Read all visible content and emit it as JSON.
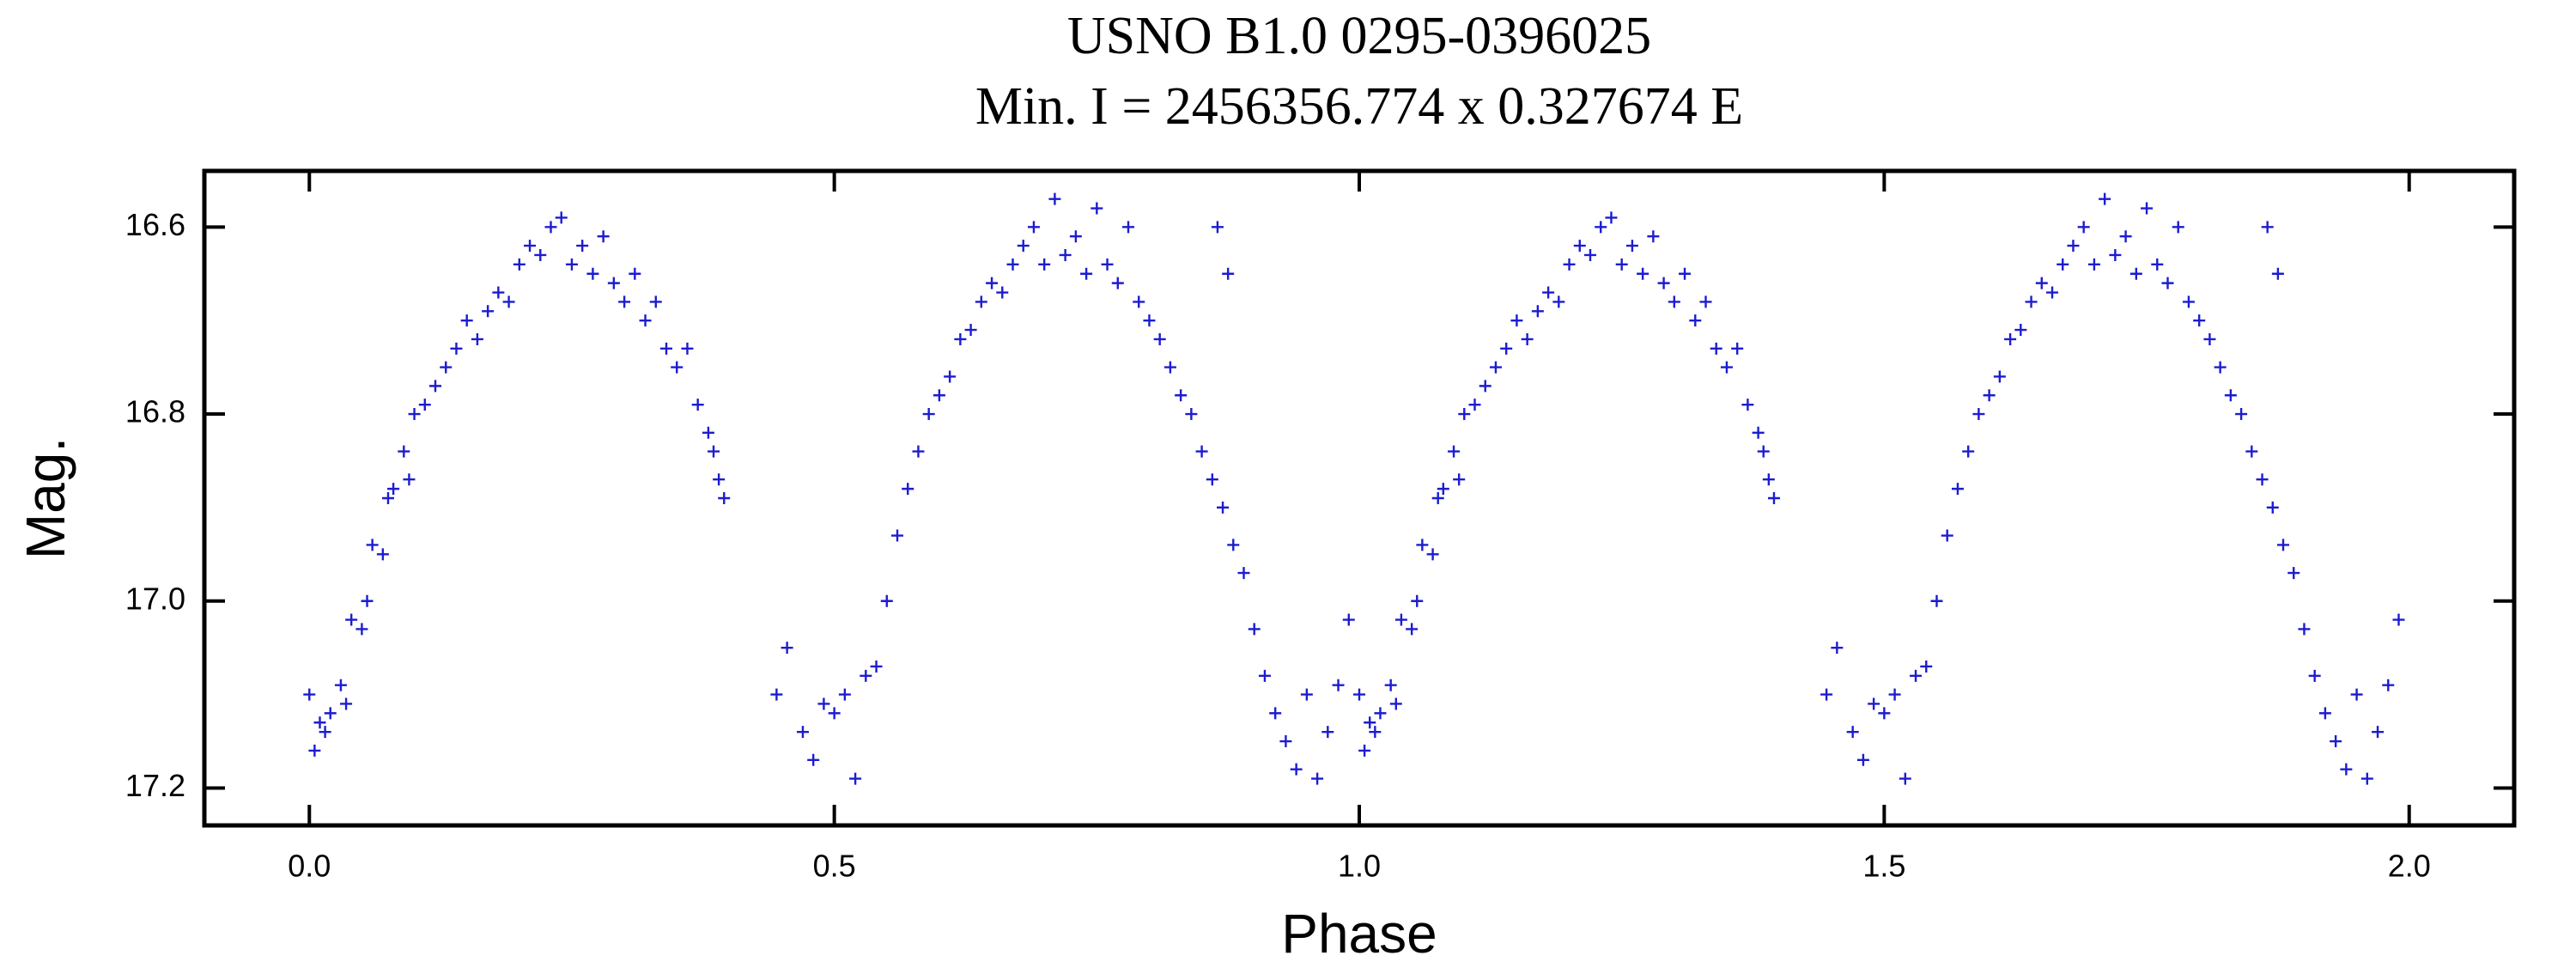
{
  "chart_data": {
    "type": "scatter",
    "title": "USNO B1.0 0295-0396025",
    "subtitle": "Min. I = 2456356.774 x 0.327674 E",
    "xlabel": "Phase",
    "ylabel": "Mag.",
    "xlim": [
      -0.1,
      2.1
    ],
    "ylim": [
      16.54,
      17.24
    ],
    "y_inverted": true,
    "xticks": [
      {
        "value": 0,
        "label": "0.0"
      },
      0.5,
      {
        "value": 1,
        "label": "1.0"
      },
      1.5,
      {
        "value": 2,
        "label": "2.0"
      }
    ],
    "yticks": [
      16.6,
      16.8,
      {
        "value": 17,
        "label": "17.0"
      },
      17.2
    ],
    "color": "#1c1cd0",
    "x": [
      0,
      0.005,
      0.01,
      0.015,
      0.02,
      0.03,
      0.035,
      0.04,
      0.05,
      0.055,
      0.06,
      0.07,
      0.075,
      0.08,
      0.09,
      0.095,
      0.1,
      0.11,
      0.12,
      0.13,
      0.14,
      0.15,
      0.16,
      0.17,
      0.18,
      0.19,
      0.2,
      0.21,
      0.22,
      0.23,
      0.24,
      0.25,
      0.26,
      0.27,
      0.28,
      0.29,
      0.3,
      0.31,
      0.32,
      0.33,
      0.34,
      0.35,
      0.36,
      0.37,
      0.38,
      0.385,
      0.39,
      0.395,
      0.445,
      0.455,
      0.47,
      0.48,
      0.49,
      0.5,
      0.51,
      0.52,
      0.53,
      0.54,
      0.55,
      0.56,
      0.57,
      0.58,
      0.59,
      0.6,
      0.61,
      0.62,
      0.63,
      0.64,
      0.65,
      0.66,
      0.67,
      0.68,
      0.69,
      0.7,
      0.71,
      0.72,
      0.73,
      0.74,
      0.75,
      0.76,
      0.77,
      0.78,
      0.79,
      0.8,
      0.81,
      0.82,
      0.83,
      0.84,
      0.85,
      0.86,
      0.87,
      0.88,
      0.89,
      0.9,
      0.91,
      0.92,
      0.93,
      0.94,
      0.95,
      0.96,
      0.97,
      0.98,
      0.99,
      0.865,
      0.875,
      1,
      1.005,
      1.01,
      1.015,
      1.02,
      1.03,
      1.035,
      1.04,
      1.05,
      1.055,
      1.06,
      1.07,
      1.075,
      1.08,
      1.09,
      1.095,
      1.1,
      1.11,
      1.12,
      1.13,
      1.14,
      1.15,
      1.16,
      1.17,
      1.18,
      1.19,
      1.2,
      1.21,
      1.22,
      1.23,
      1.24,
      1.25,
      1.26,
      1.27,
      1.28,
      1.29,
      1.3,
      1.31,
      1.32,
      1.33,
      1.34,
      1.35,
      1.36,
      1.37,
      1.38,
      1.385,
      1.39,
      1.395,
      1.445,
      1.455,
      1.47,
      1.48,
      1.49,
      1.5,
      1.51,
      1.52,
      1.53,
      1.54,
      1.55,
      1.56,
      1.57,
      1.58,
      1.59,
      1.6,
      1.61,
      1.62,
      1.63,
      1.64,
      1.65,
      1.66,
      1.67,
      1.68,
      1.69,
      1.7,
      1.71,
      1.72,
      1.73,
      1.74,
      1.75,
      1.76,
      1.77,
      1.78,
      1.79,
      1.8,
      1.81,
      1.82,
      1.83,
      1.84,
      1.85,
      1.86,
      1.87,
      1.88,
      1.89,
      1.9,
      1.91,
      1.92,
      1.93,
      1.94,
      1.95,
      1.96,
      1.97,
      1.98,
      1.99,
      1.865,
      1.875
    ],
    "y": [
      17.1,
      17.16,
      17.13,
      17.14,
      17.12,
      17.09,
      17.11,
      17.02,
      17.03,
      17.0,
      16.94,
      16.95,
      16.89,
      16.88,
      16.84,
      16.87,
      16.8,
      16.79,
      16.77,
      16.75,
      16.73,
      16.7,
      16.72,
      16.69,
      16.67,
      16.68,
      16.64,
      16.62,
      16.63,
      16.6,
      16.59,
      16.64,
      16.62,
      16.65,
      16.61,
      16.66,
      16.68,
      16.65,
      16.7,
      16.68,
      16.73,
      16.75,
      16.73,
      16.79,
      16.82,
      16.84,
      16.87,
      16.89,
      17.1,
      17.05,
      17.14,
      17.17,
      17.11,
      17.12,
      17.1,
      17.19,
      17.08,
      17.07,
      17.0,
      16.93,
      16.88,
      16.84,
      16.8,
      16.78,
      16.76,
      16.72,
      16.71,
      16.68,
      16.66,
      16.67,
      16.64,
      16.62,
      16.6,
      16.64,
      16.57,
      16.63,
      16.61,
      16.65,
      16.58,
      16.64,
      16.66,
      16.6,
      16.68,
      16.7,
      16.72,
      16.75,
      16.78,
      16.8,
      16.84,
      16.87,
      16.9,
      16.94,
      16.97,
      17.03,
      17.08,
      17.12,
      17.15,
      17.18,
      17.1,
      17.19,
      17.14,
      17.09,
      17.02,
      16.6,
      16.65,
      17.1,
      17.16,
      17.13,
      17.14,
      17.12,
      17.09,
      17.11,
      17.02,
      17.03,
      17.0,
      16.94,
      16.95,
      16.89,
      16.88,
      16.84,
      16.87,
      16.8,
      16.79,
      16.77,
      16.75,
      16.73,
      16.7,
      16.72,
      16.69,
      16.67,
      16.68,
      16.64,
      16.62,
      16.63,
      16.6,
      16.59,
      16.64,
      16.62,
      16.65,
      16.61,
      16.66,
      16.68,
      16.65,
      16.7,
      16.68,
      16.73,
      16.75,
      16.73,
      16.79,
      16.82,
      16.84,
      16.87,
      16.89,
      17.1,
      17.05,
      17.14,
      17.17,
      17.11,
      17.12,
      17.1,
      17.19,
      17.08,
      17.07,
      17.0,
      16.93,
      16.88,
      16.84,
      16.8,
      16.78,
      16.76,
      16.72,
      16.71,
      16.68,
      16.66,
      16.67,
      16.64,
      16.62,
      16.6,
      16.64,
      16.57,
      16.63,
      16.61,
      16.65,
      16.58,
      16.64,
      16.66,
      16.6,
      16.68,
      16.7,
      16.72,
      16.75,
      16.78,
      16.8,
      16.84,
      16.87,
      16.9,
      16.94,
      16.97,
      17.03,
      17.08,
      17.12,
      17.15,
      17.18,
      17.1,
      17.19,
      17.14,
      17.09,
      17.02,
      16.6,
      16.65
    ]
  }
}
